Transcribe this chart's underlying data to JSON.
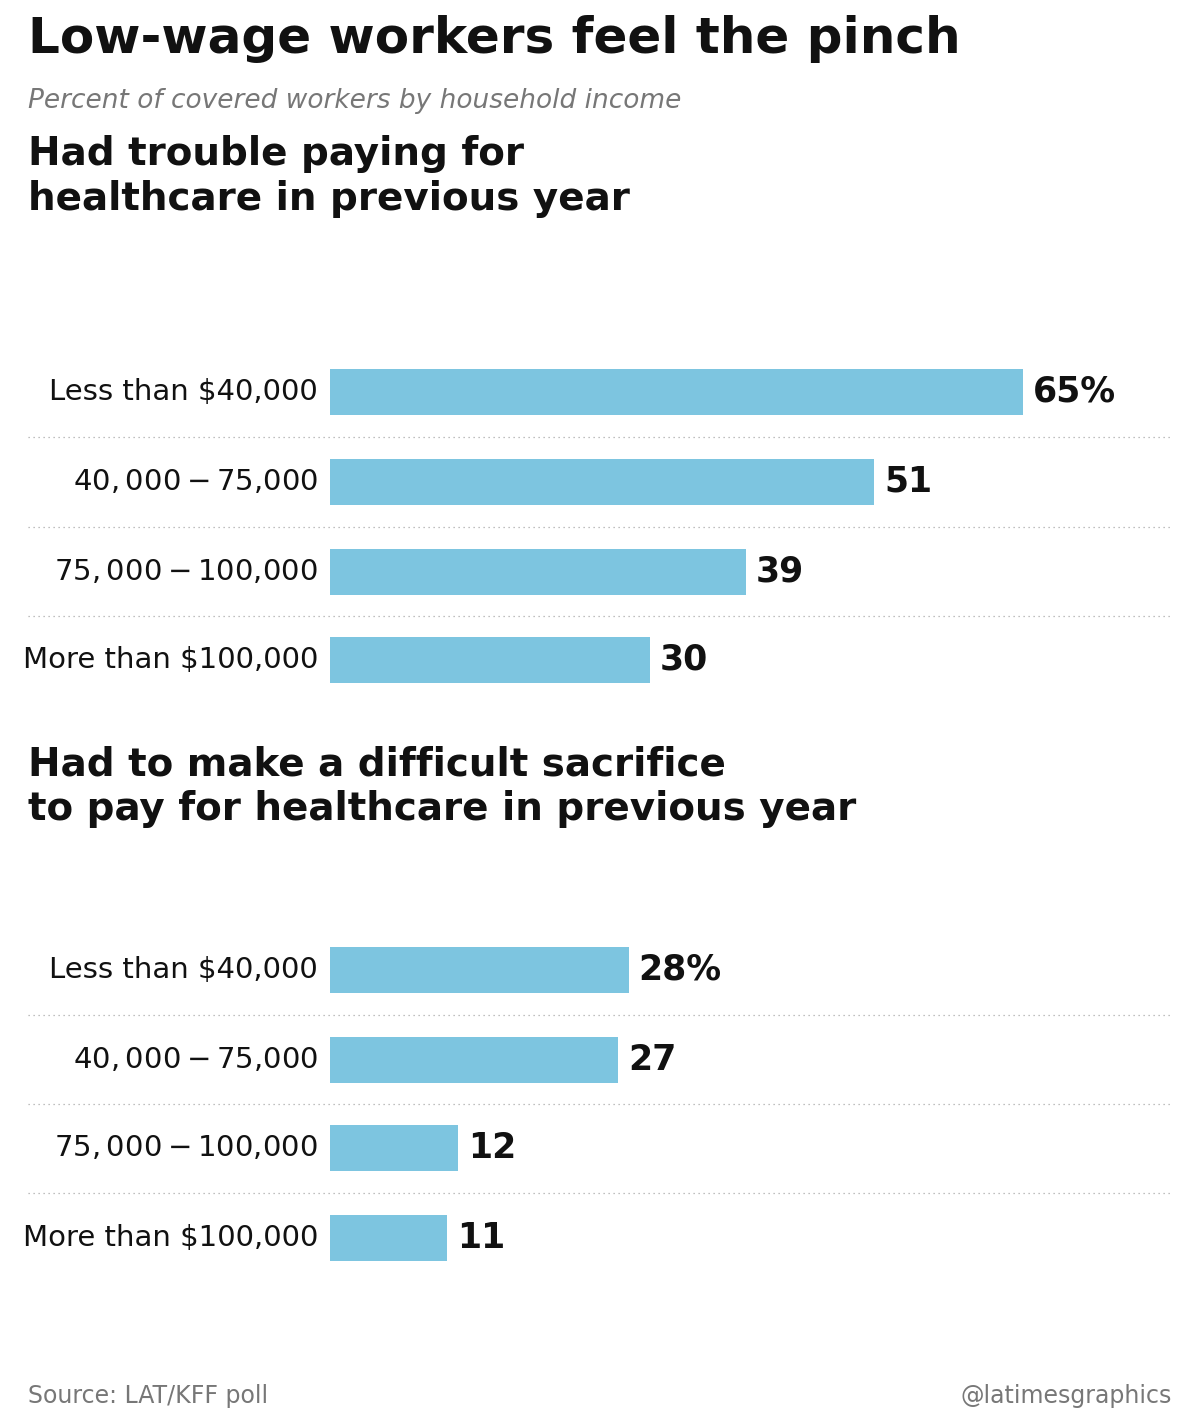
{
  "title": "Low-wage workers feel the pinch",
  "subtitle": "Percent of covered workers by household income",
  "section1_title": "Had trouble paying for\nhealthcare in previous year",
  "section2_title": "Had to make a difficult sacrifice\nto pay for healthcare in previous year",
  "section1_categories": [
    "Less than $40,000",
    "$40,000-$75,000",
    "$75,000-$100,000",
    "More than $100,000"
  ],
  "section1_values": [
    65,
    51,
    39,
    30
  ],
  "section1_labels": [
    "65%",
    "51",
    "39",
    "30"
  ],
  "section2_categories": [
    "Less than $40,000",
    "$40,000-$75,000",
    "$75,000-$100,000",
    "More than $100,000"
  ],
  "section2_values": [
    28,
    27,
    12,
    11
  ],
  "section2_labels": [
    "28%",
    "27",
    "12",
    "11"
  ],
  "bar_color": "#7DC5E0",
  "max_value": 75,
  "source_text": "Source: LAT/KFF poll",
  "credit_text": "@latimesgraphics",
  "background_color": "#ffffff",
  "title_fontsize": 36,
  "subtitle_fontsize": 19,
  "section_title_fontsize": 28,
  "category_fontsize": 21,
  "value_fontsize": 25,
  "source_fontsize": 17
}
